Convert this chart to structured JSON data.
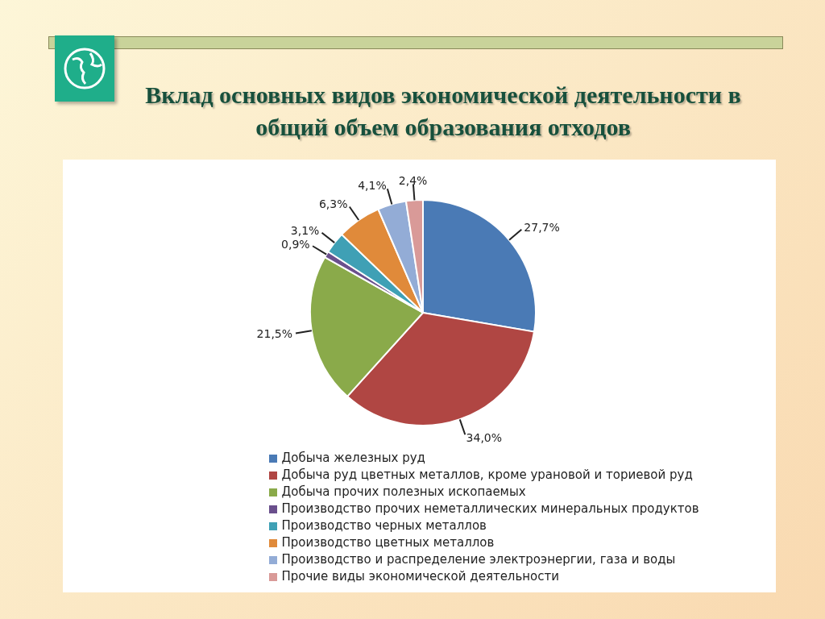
{
  "chart_data": {
    "type": "pie",
    "title": "Вклад основных видов экономической деятельности в общий объем образования отходов",
    "categories": [
      "Добыча железных руд",
      "Добыча руд цветных металлов, кроме урановой и ториевой руд",
      "Добыча прочих полезных ископаемых",
      "Производство прочих неметаллических минеральных продуктов",
      "Производство черных металлов",
      "Производство цветных металлов",
      "Производство и распределение электроэнергии, газа и воды",
      "Прочие виды экономической деятельности"
    ],
    "values": [
      27.7,
      34.0,
      21.5,
      0.9,
      3.1,
      6.3,
      4.1,
      2.4
    ],
    "colors": [
      "#4a7ab5",
      "#b04643",
      "#8aaa4a",
      "#6a4f8c",
      "#3fa0b5",
      "#e08a3a",
      "#93acd6",
      "#d99a98"
    ],
    "value_labels": [
      "27,7%",
      "34,0%",
      "21,5%",
      "0,9%",
      "3,1%",
      "6,3%",
      "4,1%",
      "2,4%"
    ],
    "legend": "bottom"
  }
}
